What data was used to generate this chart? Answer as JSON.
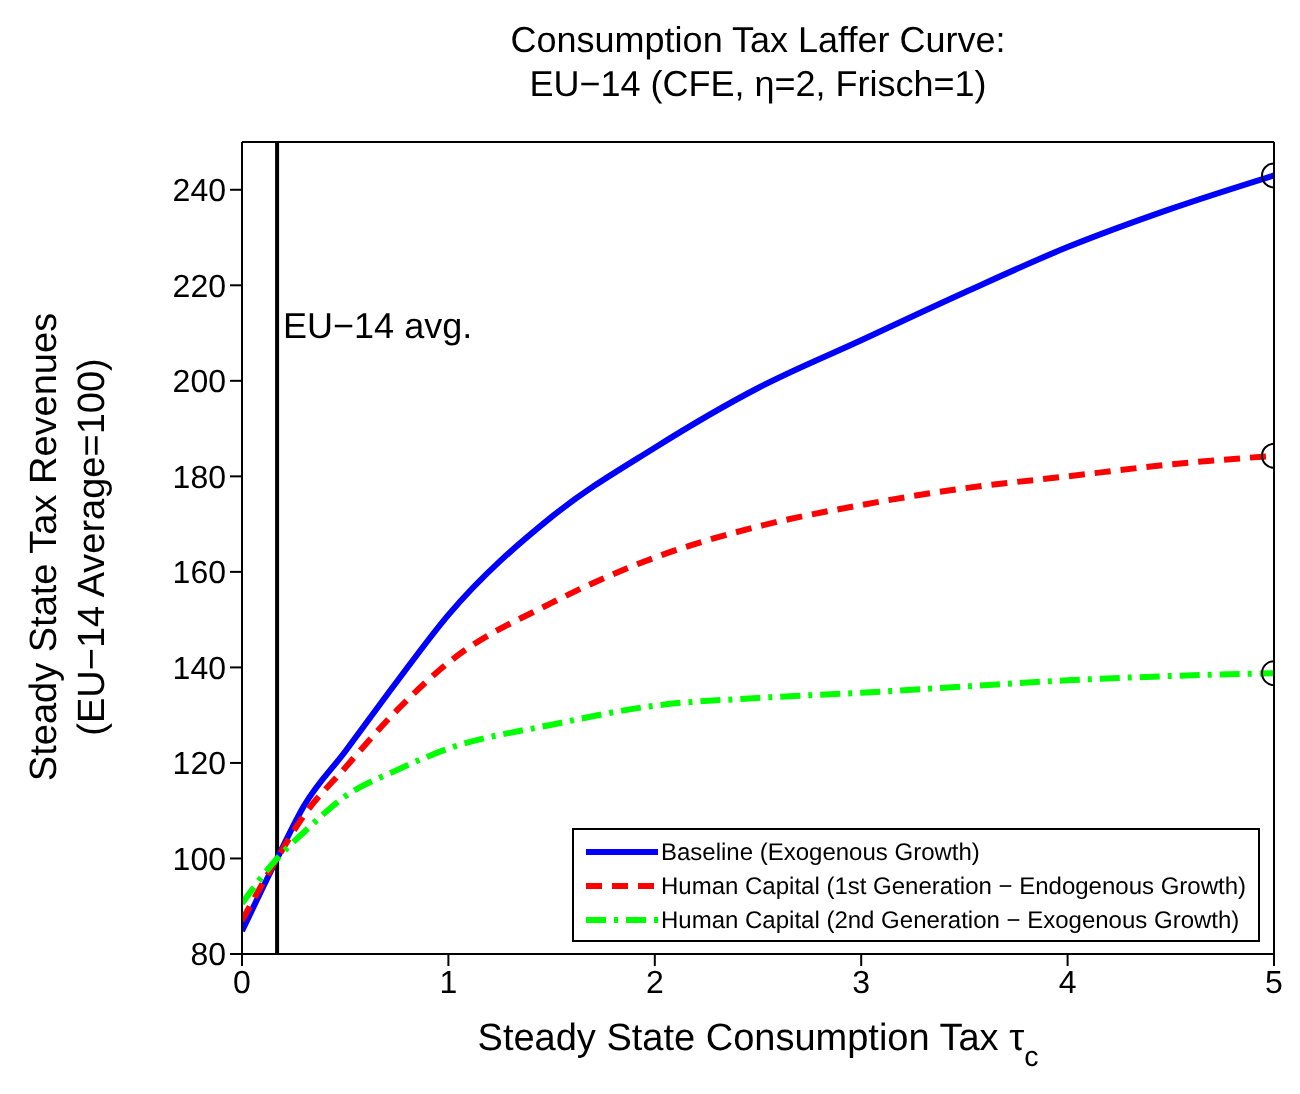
{
  "chart_data": {
    "type": "line",
    "title": "Consumption Tax Laffer Curve:\nEU−14 (CFE, η=2, Frisch=1)",
    "xlabel": "Steady State Consumption Tax τ$_{c}$",
    "ylabel": "Steady State Tax Revenues\n(EU−14 Average=100)",
    "xlim": [
      0,
      5
    ],
    "xticks": [
      0,
      1,
      2,
      3,
      4,
      5
    ],
    "ylim": [
      80,
      250
    ],
    "yticks": [
      80,
      100,
      120,
      140,
      160,
      180,
      200,
      220,
      240
    ],
    "grid": false,
    "legend": "bottom right",
    "marker": "none",
    "series": [
      {
        "name": "Baseline (Exogenous Growth)",
        "color": "#0000ff",
        "line_style": "solid",
        "x": [
          0,
          0.17,
          0.3,
          0.5,
          0.75,
          1,
          1.5,
          2,
          2.5,
          3,
          3.5,
          4,
          4.5,
          5
        ],
        "values": [
          84.8,
          100,
          111,
          122.4,
          137,
          151,
          171.5,
          186,
          198.5,
          208.5,
          218.5,
          228,
          236,
          243
        ]
      },
      {
        "name": "Human Capital (1st Generation − Endogenous Growth)",
        "color": "#ff0000",
        "line_style": "dashed",
        "x": [
          0,
          0.17,
          0.3,
          0.5,
          0.75,
          1,
          1.5,
          2,
          2.5,
          3,
          3.5,
          4,
          4.5,
          5
        ],
        "values": [
          87,
          100,
          109,
          119,
          131,
          141,
          153.5,
          163,
          169.5,
          174,
          177.5,
          180,
          182.5,
          184.3
        ]
      },
      {
        "name": "Human Capital (2nd Generation − Exogenous Growth)",
        "color": "#00ff00",
        "line_style": "dashdot",
        "x": [
          0,
          0.17,
          0.3,
          0.5,
          0.75,
          1,
          1.5,
          2,
          2.5,
          3,
          3.5,
          4,
          4.5,
          5
        ],
        "values": [
          90.6,
          100,
          105.5,
          113,
          118.5,
          123,
          128,
          132,
          133.6,
          134.7,
          136,
          137.3,
          138.2,
          138.8
        ]
      },
      {
        "type": "scatter",
        "color": "#000000",
        "marker": "circle",
        "x": [
          5,
          5,
          5
        ],
        "values": [
          243,
          184.3,
          138.8
        ]
      }
    ],
    "ref_lines": [
      {
        "axis": "x",
        "value": 0.17,
        "label": "EU−14 avg.",
        "color": "#000000"
      }
    ]
  }
}
